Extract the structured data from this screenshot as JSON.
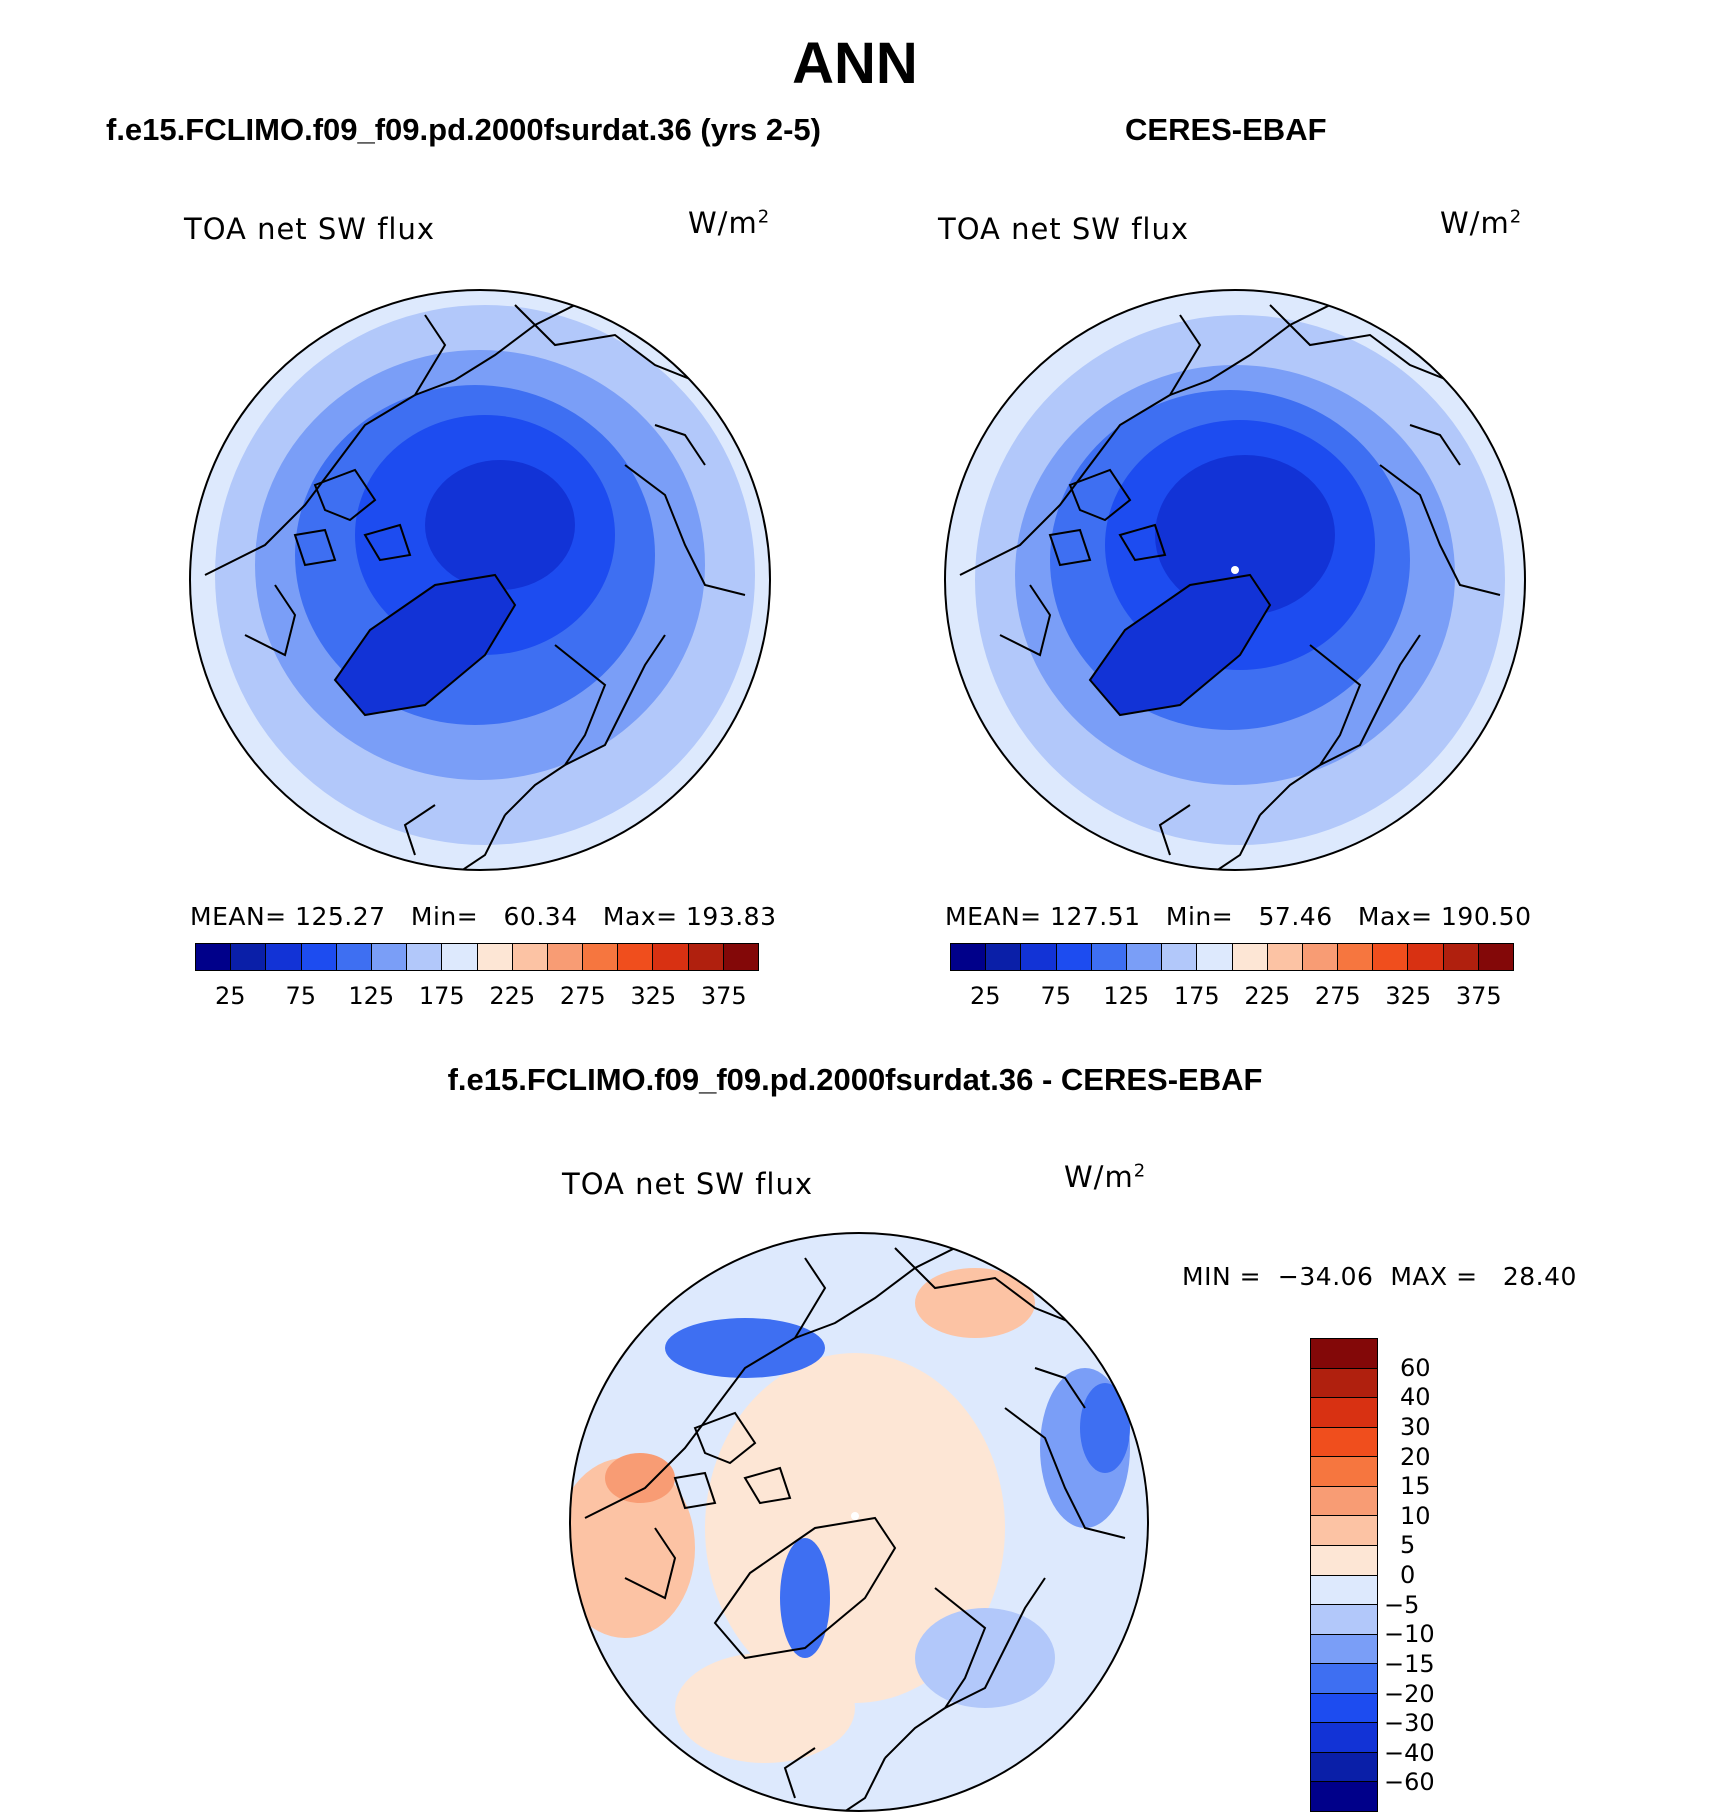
{
  "figure": {
    "title": "ANN"
  },
  "panels": {
    "model": {
      "case_title": "f.e15.FCLIMO.f09_f09.pd.2000fsurdat.36 (yrs 2-5)",
      "variable": "TOA net SW flux",
      "units_base": "W/m",
      "units_exp": "2",
      "stats": "MEAN= 125.27   Min=   60.34   Max= 193.83"
    },
    "obs": {
      "case_title": "CERES-EBAF",
      "variable": "TOA net SW flux",
      "units_base": "W/m",
      "units_exp": "2",
      "stats": "MEAN= 127.51   Min=   57.46   Max= 190.50"
    },
    "diff": {
      "case_title": "f.e15.FCLIMO.f09_f09.pd.2000fsurdat.36 - CERES-EBAF",
      "variable": "TOA net SW flux",
      "units_base": "W/m",
      "units_exp": "2",
      "stats": "MIN =  −34.06  MAX =   28.40"
    }
  },
  "colorbars": {
    "abs": {
      "ticks": [
        "25",
        "75",
        "125",
        "175",
        "225",
        "275",
        "325",
        "375"
      ],
      "colors": [
        "#00008a",
        "#0a1fa8",
        "#1233d6",
        "#1d4cf0",
        "#3e6ff2",
        "#7a9ef7",
        "#b2c8fa",
        "#dde9fd",
        "#fde6d5",
        "#fcc3a4",
        "#f89c74",
        "#f6763f",
        "#f04e1d",
        "#d83112",
        "#b0200e",
        "#830808"
      ]
    },
    "diff": {
      "ticks": [
        "60",
        "40",
        "30",
        "20",
        "15",
        "10",
        "5",
        "0",
        "−5",
        "−10",
        "−15",
        "−20",
        "−30",
        "−40",
        "−60"
      ],
      "colors": [
        "#00008a",
        "#0a1fa8",
        "#1233d6",
        "#1d4cf0",
        "#3e6ff2",
        "#7a9ef7",
        "#b2c8fa",
        "#dde9fd",
        "#fde6d5",
        "#fcc3a4",
        "#f89c74",
        "#f6763f",
        "#f04e1d",
        "#d83112",
        "#b0200e",
        "#830808"
      ]
    }
  }
}
